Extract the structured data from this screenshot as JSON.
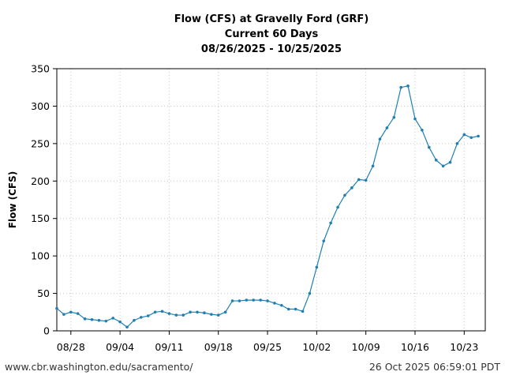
{
  "chart_data": {
    "type": "line",
    "title_lines": [
      "Flow (CFS) at Gravelly Ford (GRF)",
      "Current 60 Days",
      "08/26/2025 - 10/25/2025"
    ],
    "ylabel": "Flow (CFS)",
    "xlabel": "",
    "ylim": [
      0,
      350
    ],
    "yticks": [
      0,
      50,
      100,
      150,
      200,
      250,
      300,
      350
    ],
    "xlim": [
      "2025-08-26",
      "2025-10-26"
    ],
    "xticks": [
      {
        "date": "2025-08-28",
        "label": "08/28"
      },
      {
        "date": "2025-09-04",
        "label": "09/04"
      },
      {
        "date": "2025-09-11",
        "label": "09/11"
      },
      {
        "date": "2025-09-18",
        "label": "09/18"
      },
      {
        "date": "2025-09-25",
        "label": "09/25"
      },
      {
        "date": "2025-10-02",
        "label": "10/02"
      },
      {
        "date": "2025-10-09",
        "label": "10/09"
      },
      {
        "date": "2025-10-16",
        "label": "10/16"
      },
      {
        "date": "2025-10-23",
        "label": "10/23"
      }
    ],
    "grid": true,
    "line_color": "#1f7fb4",
    "series": [
      {
        "x": [
          "2025-08-26",
          "2025-08-27",
          "2025-08-28",
          "2025-08-29",
          "2025-08-30",
          "2025-08-31",
          "2025-09-01",
          "2025-09-02",
          "2025-09-03",
          "2025-09-04",
          "2025-09-05",
          "2025-09-06",
          "2025-09-07",
          "2025-09-08",
          "2025-09-09",
          "2025-09-10",
          "2025-09-11",
          "2025-09-12",
          "2025-09-13",
          "2025-09-14",
          "2025-09-15",
          "2025-09-16",
          "2025-09-17",
          "2025-09-18",
          "2025-09-19",
          "2025-09-20",
          "2025-09-21",
          "2025-09-22",
          "2025-09-23",
          "2025-09-24",
          "2025-09-25",
          "2025-09-26",
          "2025-09-27",
          "2025-09-28",
          "2025-09-29",
          "2025-09-30",
          "2025-10-01",
          "2025-10-02",
          "2025-10-03",
          "2025-10-04",
          "2025-10-05",
          "2025-10-06",
          "2025-10-07",
          "2025-10-08",
          "2025-10-09",
          "2025-10-10",
          "2025-10-11",
          "2025-10-12",
          "2025-10-13",
          "2025-10-14",
          "2025-10-15",
          "2025-10-16",
          "2025-10-17",
          "2025-10-18",
          "2025-10-19",
          "2025-10-20",
          "2025-10-21",
          "2025-10-22",
          "2025-10-23",
          "2025-10-24",
          "2025-10-25"
        ],
        "values": [
          30,
          22,
          25,
          23,
          16,
          15,
          14,
          13,
          17,
          12,
          5,
          14,
          18,
          20,
          25,
          26,
          23,
          21,
          21,
          25,
          25,
          24,
          22,
          21,
          25,
          40,
          40,
          41,
          41,
          41,
          40,
          37,
          34,
          29,
          29,
          26,
          50,
          85,
          120,
          144,
          165,
          181,
          191,
          202,
          201,
          220,
          256,
          271,
          285,
          325,
          327,
          283,
          268,
          245,
          228,
          220,
          225,
          250,
          262,
          258,
          260
        ]
      }
    ]
  },
  "footer": {
    "url": "www.cbr.washington.edu/sacramento/",
    "timestamp": "26 Oct 2025 06:59:01 PDT"
  }
}
